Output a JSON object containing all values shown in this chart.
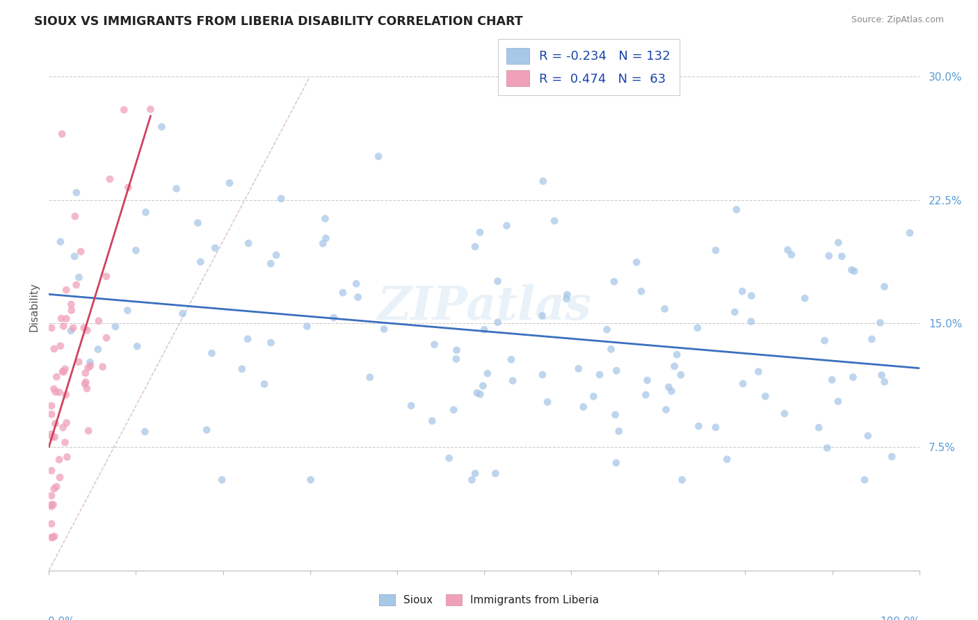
{
  "title": "SIOUX VS IMMIGRANTS FROM LIBERIA DISABILITY CORRELATION CHART",
  "source": "Source: ZipAtlas.com",
  "ylabel": "Disability",
  "yticks": [
    "7.5%",
    "15.0%",
    "22.5%",
    "30.0%"
  ],
  "ytick_vals": [
    0.075,
    0.15,
    0.225,
    0.3
  ],
  "xlim": [
    0.0,
    1.0
  ],
  "ylim": [
    0.0,
    0.32
  ],
  "legend_line1": "R = -0.234   N = 132",
  "legend_line2": "R =  0.474   N =  63",
  "watermark": "ZIPatlas",
  "color_sioux": "#a8c8e8",
  "color_liberia": "#f0a0b8",
  "color_sioux_line": "#3a6fbf",
  "color_liberia_line": "#d04060",
  "color_diag": "#d0b0b0",
  "sioux_seed": 12345,
  "liberia_seed": 99,
  "n_sioux": 132,
  "n_liberia": 63,
  "marker_size": 60
}
